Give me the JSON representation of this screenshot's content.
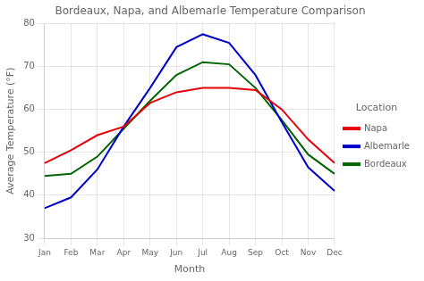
{
  "chart_data": {
    "type": "line",
    "title": "Bordeaux, Napa, and Albemarle Temperature Comparison",
    "x_label": "Month",
    "y_label": "Average Temperature (°F)",
    "categories": [
      "Jan",
      "Feb",
      "Mar",
      "Apr",
      "May",
      "Jun",
      "Jul",
      "Aug",
      "Sep",
      "Oct",
      "Nov",
      "Dec"
    ],
    "series": [
      {
        "name": "Napa",
        "color": "#e8000a",
        "values": [
          47.5,
          50.5,
          54.0,
          56.0,
          61.5,
          64.0,
          65.0,
          65.0,
          64.5,
          60.0,
          53.0,
          47.5
        ]
      },
      {
        "name": "Albemarle",
        "color": "#0000cd",
        "values": [
          37.0,
          39.5,
          46.0,
          56.0,
          65.0,
          74.5,
          77.5,
          75.5,
          68.0,
          57.0,
          46.5,
          41.0
        ]
      },
      {
        "name": "Bordeaux",
        "color": "#006400",
        "values": [
          44.5,
          45.0,
          49.0,
          55.5,
          62.0,
          68.0,
          71.0,
          70.5,
          65.0,
          57.5,
          49.5,
          45.0
        ]
      }
    ],
    "legend_title": "Location",
    "legend": "right",
    "ylim": [
      30,
      80
    ],
    "yticks": [
      30,
      40,
      50,
      60,
      70,
      80
    ],
    "grid": true
  }
}
